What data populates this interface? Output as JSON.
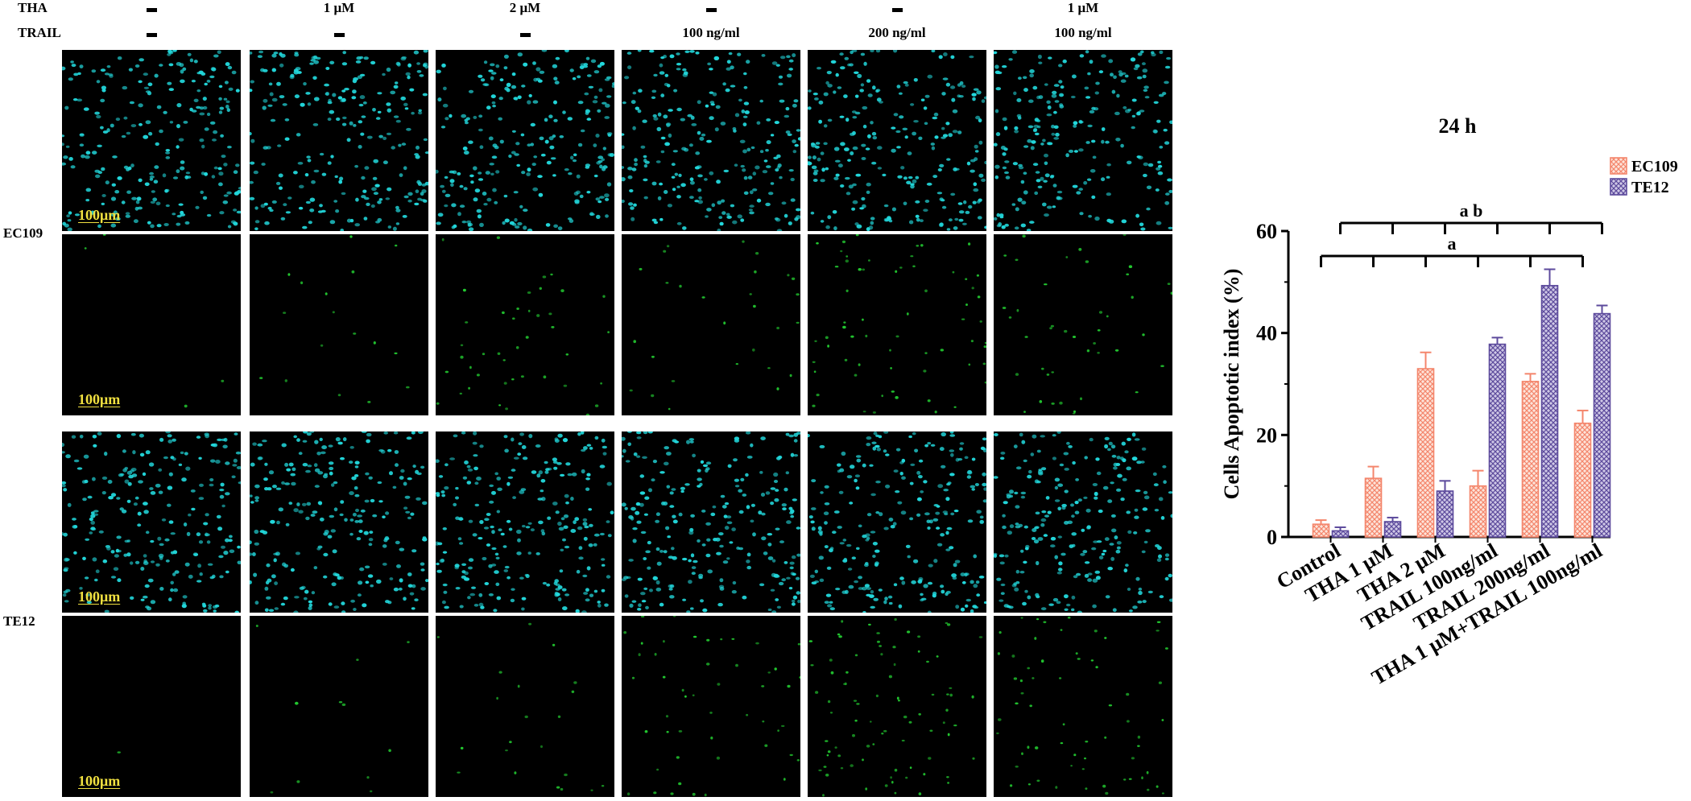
{
  "figure": {
    "treatment_rows": [
      {
        "label": "THA",
        "values": [
          "−",
          "1 μM",
          "2 μM",
          "−",
          "−",
          "1 μM"
        ]
      },
      {
        "label": "TRAIL",
        "values": [
          "−",
          "−",
          "−",
          "100 ng/ml",
          "200 ng/ml",
          "100 ng/ml"
        ]
      }
    ],
    "row_labels": [
      "EC109",
      "TE12"
    ],
    "scale_bar": "100μm",
    "colors": {
      "dapi": "#22d8dc",
      "tunel": "#22c830",
      "panel_bg": "#000000"
    },
    "panel_grid": {
      "columns": 6,
      "rows": [
        {
          "cell_line": "EC109",
          "stain": "dapi",
          "density": [
            1,
            1,
            1,
            1,
            1,
            1
          ]
        },
        {
          "cell_line": "EC109",
          "stain": "tunel",
          "density": [
            0.03,
            0.12,
            0.3,
            0.2,
            0.45,
            0.3
          ]
        },
        {
          "cell_line": "TE12",
          "stain": "dapi",
          "density": [
            1,
            1,
            1,
            1,
            1,
            1
          ]
        },
        {
          "cell_line": "TE12",
          "stain": "tunel",
          "density": [
            0.01,
            0.08,
            0.15,
            0.35,
            0.6,
            0.45
          ]
        }
      ]
    }
  },
  "chart_data": {
    "type": "bar",
    "title": "24 h",
    "ylabel": "Cells Apoptotic index (%)",
    "xlabel": "",
    "ylim": [
      0,
      60
    ],
    "yticks": [
      0,
      20,
      40,
      60
    ],
    "categories": [
      "Control",
      "THA 1 μM",
      "THA 2 μM",
      "TRAIL 100ng/ml",
      "TRAIL 200ng/ml",
      "THA 1 μM+TRAIL 100ng/ml"
    ],
    "series": [
      {
        "name": "EC109",
        "color": "#f4866c",
        "pattern": "crosshatch-orange",
        "values": [
          2.5,
          11.5,
          33.0,
          10.0,
          30.5,
          22.3
        ],
        "errors": [
          0.8,
          2.3,
          3.2,
          3.0,
          1.5,
          2.5
        ]
      },
      {
        "name": "TE12",
        "color": "#5c4a9c",
        "pattern": "crosshatch-purple",
        "values": [
          1.2,
          3.0,
          9.0,
          37.8,
          49.3,
          43.8
        ],
        "errors": [
          0.7,
          0.8,
          2.0,
          1.3,
          3.2,
          1.6
        ]
      }
    ],
    "legend_position": "top-right",
    "significance": [
      {
        "label": "a b",
        "from": "TE12 Control",
        "to": "TE12 THA 1 μM+TRAIL 100ng/ml"
      },
      {
        "label": "a",
        "from": "EC109 Control",
        "to": "EC109 THA 1 μM+TRAIL 100ng/ml"
      }
    ]
  }
}
